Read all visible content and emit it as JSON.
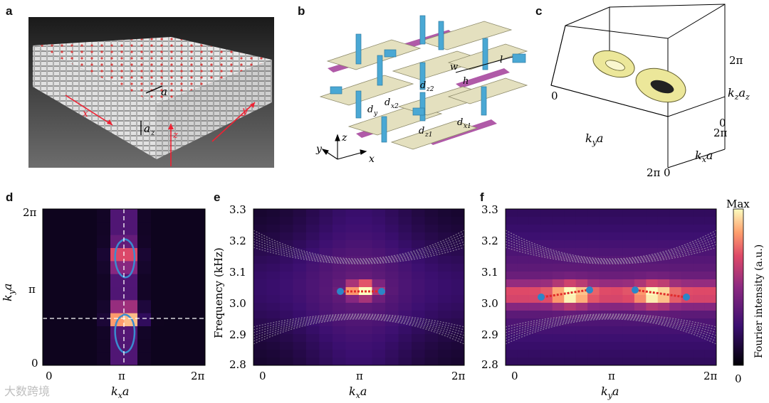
{
  "panels": {
    "a": {
      "label": "a",
      "annotations": {
        "a": "a",
        "az": "a",
        "az_sub": "z",
        "x": "x",
        "y": "y",
        "z": "z"
      }
    },
    "b": {
      "label": "b",
      "annotations": {
        "w": "w",
        "h": "h",
        "l": "l",
        "dz2": "d",
        "dz2_sub": "z2",
        "dy": "d",
        "dy_sub": "y",
        "dx2": "d",
        "dx2_sub": "x2",
        "dz1": "d",
        "dz1_sub": "z1",
        "dx1": "d",
        "dx1_sub": "x1",
        "x": "x",
        "y": "y",
        "z": "z"
      }
    },
    "c": {
      "label": "c",
      "zero_left": "0",
      "two_pi_top": "2π",
      "zero_right": "0",
      "two_pi_mid": "2π",
      "two_pi_bottom": "2π",
      "zero_bottom": "0",
      "kya": "k",
      "kya_sub": "y",
      "kya_a": "a",
      "kxa": "k",
      "kxa_sub": "x",
      "kxa_a": "a",
      "kzaz": "k",
      "kzaz_sub1": "z",
      "kzaz_a": "a",
      "kzaz_sub2": "z"
    },
    "d": {
      "label": "d",
      "yticks": [
        "2π",
        "π",
        "0"
      ],
      "xticks": [
        "0",
        "π",
        "2π"
      ],
      "xlabel": "k",
      "xlabel_sub": "x",
      "xlabel_a": "a",
      "ylabel": "k",
      "ylabel_sub": "y",
      "ylabel_a": "a"
    },
    "e": {
      "label": "e",
      "yticks": [
        "3.3",
        "3.2",
        "3.1",
        "3.0",
        "2.9",
        "2.8"
      ],
      "xticks": [
        "0",
        "π",
        "2π"
      ],
      "ylabel": "Frequency (kHz)",
      "xlabel": "k",
      "xlabel_sub": "x",
      "xlabel_a": "a"
    },
    "f": {
      "label": "f",
      "yticks": [
        "3.3",
        "3.2",
        "3.1",
        "3.0",
        "2.9",
        "2.8"
      ],
      "xticks": [
        "0",
        "π",
        "2π"
      ],
      "xlabel": "k",
      "xlabel_sub": "y",
      "xlabel_a": "a"
    },
    "colorbar": {
      "max": "Max",
      "min": "0",
      "label": "Fourier intensity (a.u.)"
    }
  },
  "watermark": "大数跨境",
  "colors": {
    "fermi_arc": "#e02a2a",
    "weyl_point": "#2b86c8",
    "contour": "#3a8ccf",
    "beam_blue": "#4aa8d4",
    "beam_beige": "#e4e0bf",
    "beam_purple": "#b05aa8"
  }
}
